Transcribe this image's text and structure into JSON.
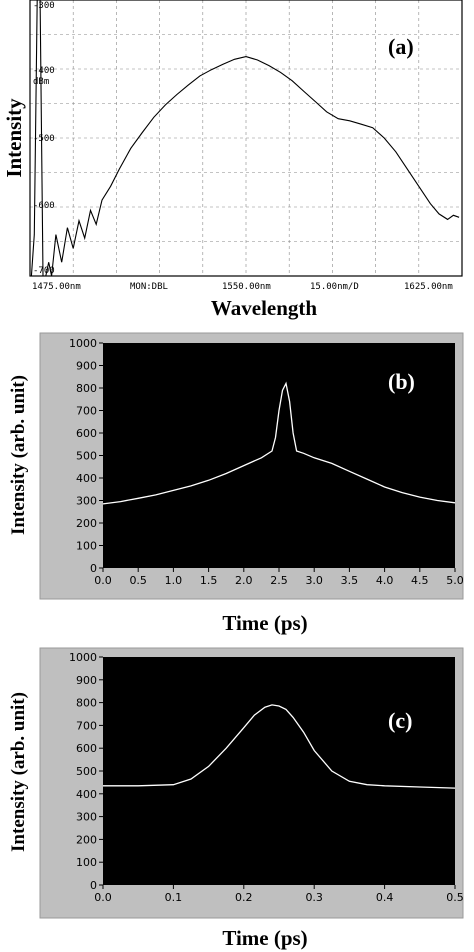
{
  "figure_labels": {
    "a": "(a)",
    "b": "(b)",
    "c": "(c)"
  },
  "colors": {
    "osa_background": "#ffffff",
    "osa_grid": "#888888",
    "osa_trace": "#000000",
    "scope_frame": "#bfbfbf",
    "scope_plot": "#000000",
    "scope_trace": "#ffffff"
  },
  "chart_data": [
    {
      "id": "a",
      "type": "line",
      "ylabel": "Intensity",
      "xlabel": "Wavelength",
      "unit_label": "dBm",
      "tick_labels_y": [
        "-300",
        "-400",
        "-500",
        "-600",
        "-700"
      ],
      "tick_labels_x": [
        "1475.00nm",
        "MON:DBL",
        "1550.00nm",
        "15.00nm/D",
        "1625.00nm"
      ],
      "xlim": [
        1475,
        1625
      ],
      "ylim": [
        -700,
        -300
      ],
      "grid": true,
      "series": [
        {
          "x": [
            1475.5,
            1476.5,
            1477.5,
            1478.5,
            1479.5,
            1480.5,
            1481.5,
            1482.5,
            1484,
            1486,
            1488,
            1490,
            1492,
            1494,
            1496,
            1498,
            1500,
            1503,
            1506,
            1510,
            1514,
            1518,
            1522,
            1526,
            1530,
            1534,
            1538,
            1542,
            1546,
            1550,
            1554,
            1558,
            1562,
            1566,
            1570,
            1574,
            1578,
            1582,
            1586,
            1590,
            1594,
            1598,
            1602,
            1606,
            1610,
            1614,
            1617,
            1620,
            1622,
            1624
          ],
          "y": [
            -700,
            -640,
            -300,
            -300,
            -700,
            -700,
            -680,
            -700,
            -640,
            -680,
            -630,
            -660,
            -620,
            -645,
            -605,
            -625,
            -590,
            -570,
            -545,
            -515,
            -492,
            -470,
            -452,
            -437,
            -423,
            -410,
            -401,
            -393,
            -386,
            -382,
            -387,
            -395,
            -405,
            -417,
            -432,
            -447,
            -462,
            -472,
            -475,
            -480,
            -485,
            -500,
            -520,
            -545,
            -570,
            -595,
            -610,
            -618,
            -612,
            -615
          ]
        }
      ]
    },
    {
      "id": "b",
      "type": "line",
      "ylabel": "Intensity (arb. unit)",
      "xlabel": "Time (ps)",
      "xlim": [
        0,
        5
      ],
      "ylim": [
        0,
        1000
      ],
      "xticks": [
        "0.0",
        "0.5",
        "1.0",
        "1.5",
        "2.0",
        "2.5",
        "3.0",
        "3.5",
        "4.0",
        "4.5",
        "5.0"
      ],
      "yticks": [
        "0",
        "100",
        "200",
        "300",
        "400",
        "500",
        "600",
        "700",
        "800",
        "900",
        "1000"
      ],
      "grid": false,
      "series": [
        {
          "x": [
            0,
            0.25,
            0.5,
            0.75,
            1.0,
            1.25,
            1.5,
            1.75,
            2.0,
            2.25,
            2.4,
            2.45,
            2.5,
            2.55,
            2.6,
            2.65,
            2.7,
            2.75,
            2.85,
            3.0,
            3.25,
            3.5,
            3.75,
            4.0,
            4.25,
            4.5,
            4.75,
            5.0
          ],
          "y": [
            285,
            295,
            310,
            325,
            345,
            365,
            390,
            420,
            455,
            490,
            520,
            580,
            700,
            790,
            820,
            740,
            600,
            520,
            510,
            490,
            465,
            430,
            395,
            360,
            335,
            315,
            300,
            290
          ]
        }
      ]
    },
    {
      "id": "c",
      "type": "line",
      "ylabel": "Intensity (arb. unit)",
      "xlabel": "Time (ps)",
      "xlim": [
        0,
        0.5
      ],
      "ylim": [
        0,
        1000
      ],
      "xticks": [
        "0.0",
        "0.1",
        "0.2",
        "0.3",
        "0.4",
        "0.5"
      ],
      "yticks": [
        "0",
        "100",
        "200",
        "300",
        "400",
        "500",
        "600",
        "700",
        "800",
        "900",
        "1000"
      ],
      "grid": false,
      "series": [
        {
          "x": [
            0,
            0.05,
            0.1,
            0.125,
            0.15,
            0.175,
            0.2,
            0.215,
            0.23,
            0.24,
            0.25,
            0.26,
            0.27,
            0.285,
            0.3,
            0.325,
            0.35,
            0.375,
            0.4,
            0.45,
            0.5
          ],
          "y": [
            435,
            435,
            440,
            465,
            520,
            600,
            690,
            745,
            780,
            790,
            785,
            770,
            735,
            670,
            590,
            500,
            455,
            440,
            435,
            430,
            425
          ]
        }
      ]
    }
  ]
}
